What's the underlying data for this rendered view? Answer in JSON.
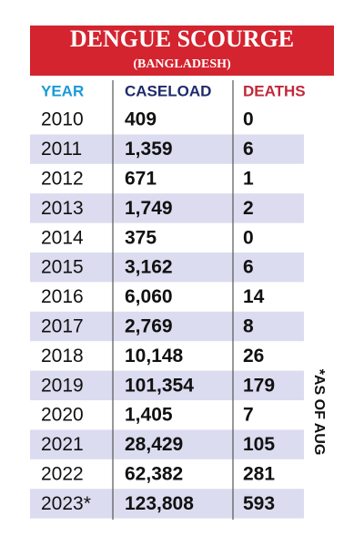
{
  "header": {
    "title": "DENGUE SCOURGE",
    "subtitle": "(BANGLADESH)"
  },
  "table": {
    "columns": [
      "YEAR",
      "CASELOAD",
      "DEATHS"
    ],
    "rows": [
      [
        "2010",
        "409",
        "0"
      ],
      [
        "2011",
        "1,359",
        "6"
      ],
      [
        "2012",
        "671",
        "1"
      ],
      [
        "2013",
        "1,749",
        "2"
      ],
      [
        "2014",
        "375",
        "0"
      ],
      [
        "2015",
        "3,162",
        "6"
      ],
      [
        "2016",
        "6,060",
        "14"
      ],
      [
        "2017",
        "2,769",
        "8"
      ],
      [
        "2018",
        "10,148",
        "26"
      ],
      [
        "2019",
        "101,354",
        "179"
      ],
      [
        "2020",
        "1,405",
        "7"
      ],
      [
        "2021",
        "28,429",
        "105"
      ],
      [
        "2022",
        "62,382",
        "281"
      ],
      [
        "2023*",
        "123,808",
        "593"
      ]
    ]
  },
  "note": "*AS OF AUG"
}
